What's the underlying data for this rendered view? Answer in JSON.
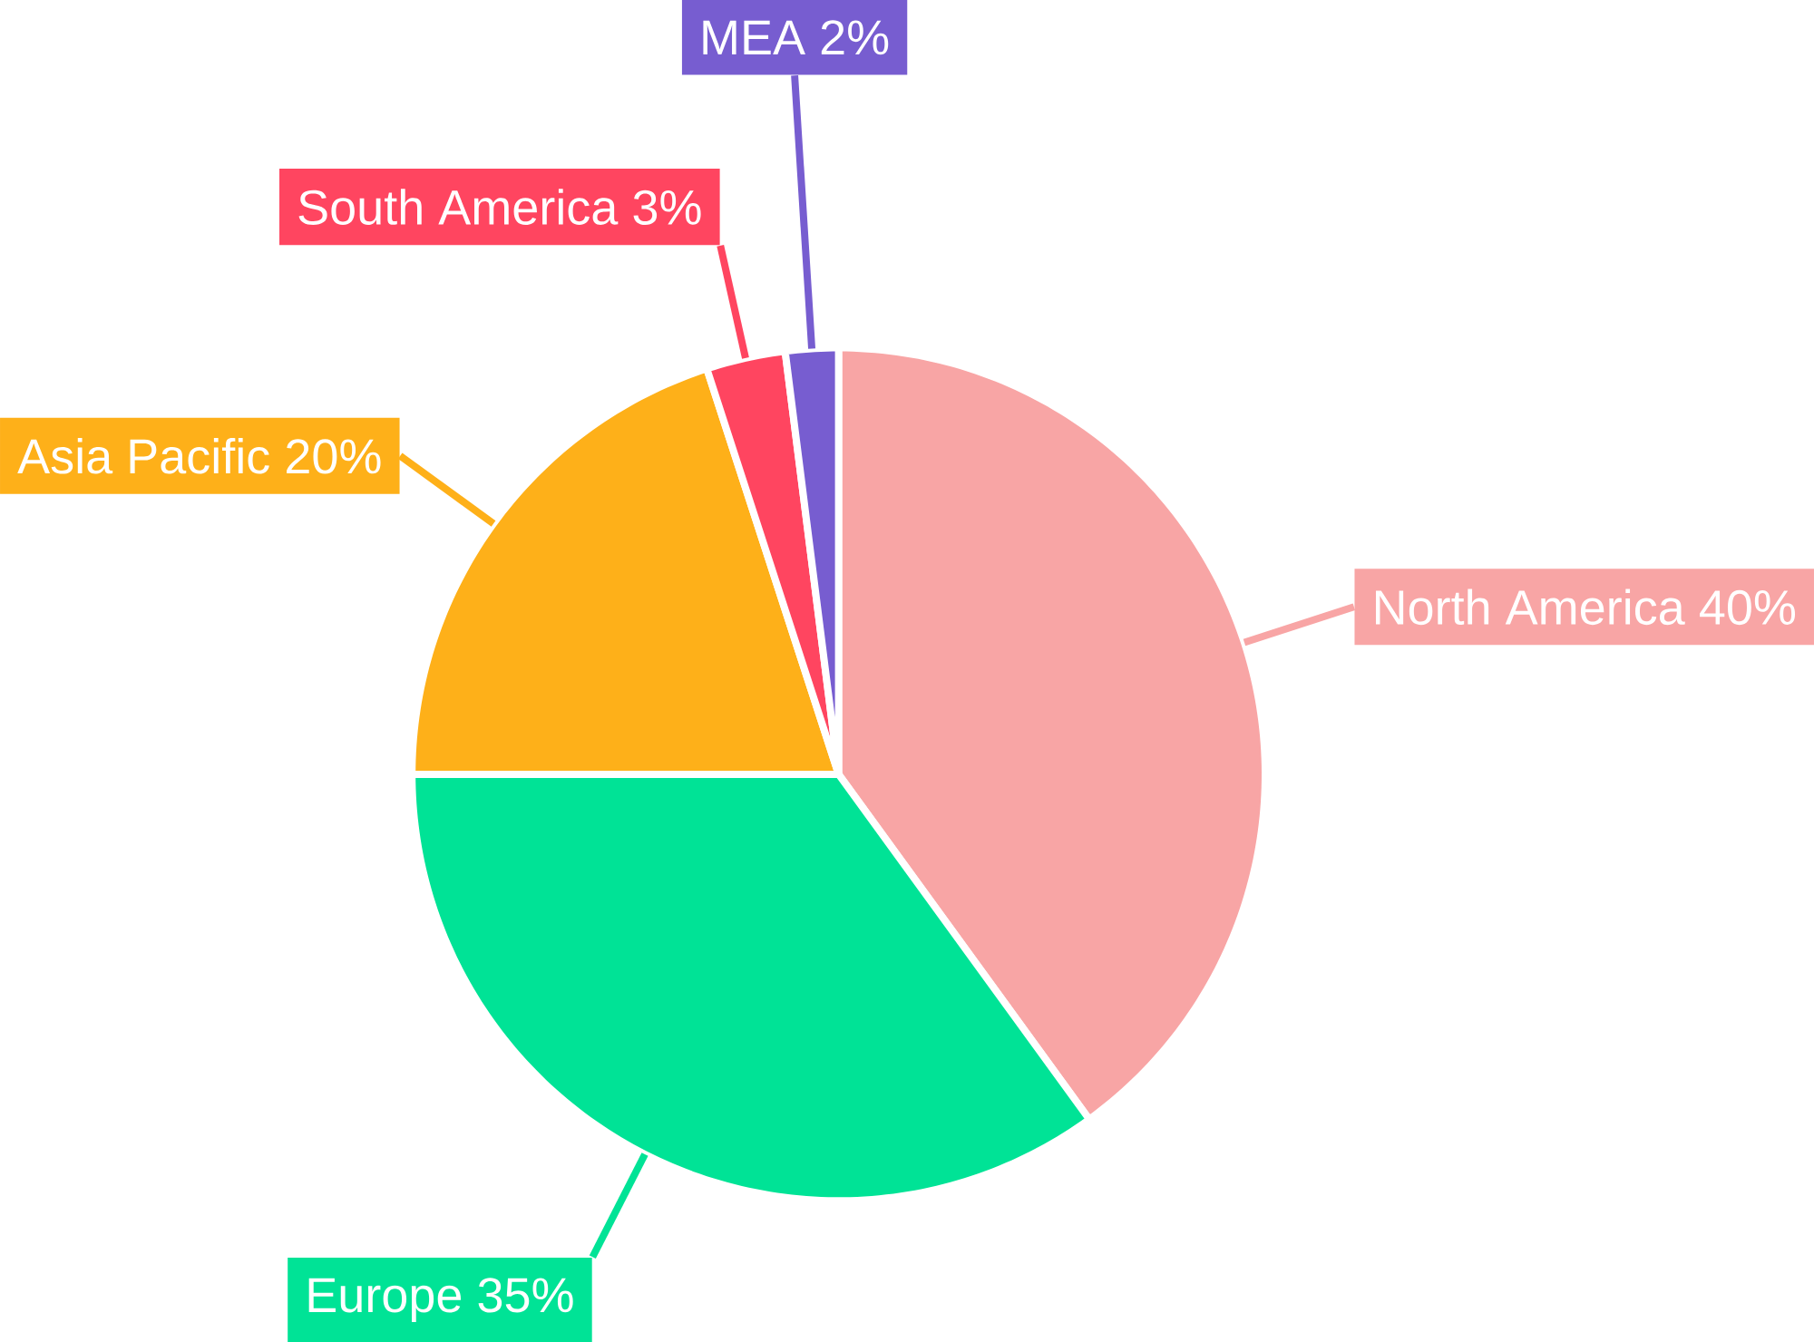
{
  "chart_data": {
    "type": "pie",
    "categories": [
      "North America",
      "Europe",
      "Asia Pacific",
      "South America",
      "MEA"
    ],
    "values": [
      40,
      35,
      20,
      3,
      2
    ],
    "value_labels": [
      "40%",
      "35%",
      "20%",
      "3%",
      "2%"
    ],
    "colors": [
      "#f8a5a5",
      "#00e396",
      "#feb019",
      "#ff4560",
      "#775dd0"
    ]
  }
}
